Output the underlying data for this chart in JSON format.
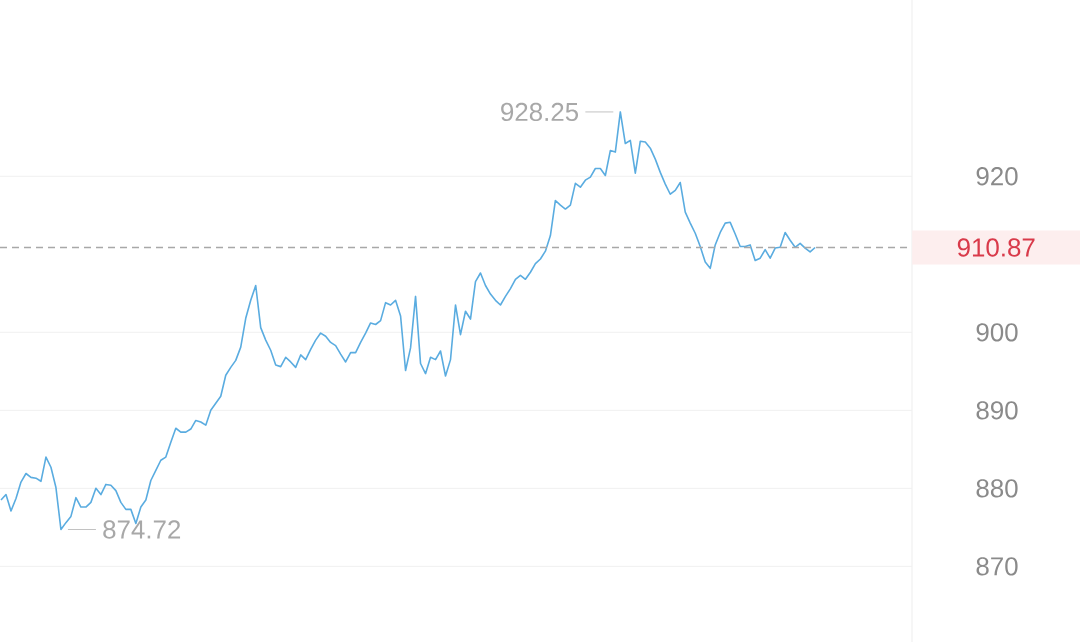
{
  "chart_data": {
    "type": "line",
    "categories": [
      null,
      null,
      null,
      null,
      null,
      null,
      null,
      null,
      null,
      null,
      null,
      null,
      null,
      null,
      null,
      null,
      null,
      null,
      null,
      null,
      null,
      null,
      null,
      null,
      null,
      null,
      null,
      null,
      null,
      null,
      null,
      null,
      null,
      null,
      null,
      null,
      null,
      null,
      null,
      null,
      null,
      null,
      null,
      null,
      null,
      null,
      null,
      null,
      null,
      null,
      null,
      null,
      null,
      null,
      null,
      null,
      null,
      null,
      null,
      null,
      null,
      null,
      null,
      null,
      null,
      null,
      null,
      null,
      null,
      null,
      null,
      null,
      null,
      null,
      null,
      null,
      null,
      null,
      null,
      null,
      null,
      null,
      null,
      null,
      null,
      null,
      null,
      null,
      null,
      null,
      null,
      null,
      null,
      null,
      null,
      null,
      null,
      null,
      null,
      null,
      null,
      null,
      null,
      null,
      null,
      null,
      null,
      null,
      null,
      null,
      null,
      null,
      null,
      null,
      null,
      null,
      null,
      null,
      null,
      null,
      null,
      null,
      null,
      null,
      null,
      null,
      null,
      null,
      null,
      null,
      null,
      null,
      null,
      null,
      null,
      null,
      null,
      null,
      null,
      null,
      null,
      null,
      null,
      null,
      null,
      null,
      null,
      null,
      null,
      null,
      null,
      null,
      null,
      null,
      null,
      null,
      null,
      null,
      null,
      null,
      null,
      null,
      null,
      null,
      null,
      null,
      null,
      null,
      null,
      null,
      null,
      null,
      null,
      null,
      null,
      null,
      null,
      null,
      null,
      null,
      null,
      null,
      null
    ],
    "series": [
      {
        "color": "#5aace0",
        "values": [
          878.5,
          879.2,
          877.1,
          878.7,
          880.8,
          881.9,
          881.4,
          881.3,
          880.9,
          884.0,
          882.7,
          880.1,
          874.72,
          875.6,
          876.4,
          878.8,
          877.6,
          877.6,
          878.2,
          880.0,
          879.2,
          880.5,
          880.4,
          879.7,
          878.2,
          877.3,
          877.3,
          875.5,
          877.6,
          878.5,
          881.0,
          882.3,
          883.6,
          884.0,
          885.9,
          887.7,
          887.2,
          887.2,
          887.6,
          888.7,
          888.5,
          888.1,
          890.0,
          890.9,
          891.8,
          894.5,
          895.5,
          896.4,
          898.1,
          901.8,
          904.1,
          906.0,
          900.6,
          899.0,
          897.7,
          895.8,
          895.6,
          896.8,
          896.2,
          895.5,
          897.1,
          896.5,
          897.8,
          899.0,
          899.9,
          899.5,
          898.7,
          898.3,
          897.2,
          896.2,
          897.4,
          897.4,
          898.7,
          899.9,
          901.2,
          901.0,
          901.5,
          903.8,
          903.5,
          904.1,
          902.1,
          895.1,
          898.0,
          904.6,
          896.0,
          894.7,
          896.8,
          896.5,
          897.6,
          894.4,
          896.5,
          903.5,
          899.7,
          902.7,
          901.7,
          906.5,
          907.6,
          906.0,
          904.9,
          904.1,
          903.5,
          904.6,
          905.6,
          906.8,
          907.3,
          906.8,
          907.7,
          908.8,
          909.4,
          910.4,
          912.4,
          916.9,
          916.3,
          915.8,
          916.3,
          919.1,
          918.6,
          919.5,
          919.9,
          921.0,
          921.0,
          920.1,
          923.3,
          923.1,
          928.25,
          924.2,
          924.6,
          920.4,
          924.5,
          924.4,
          923.6,
          922.2,
          920.5,
          919.0,
          917.7,
          918.2,
          919.2,
          915.4,
          914.0,
          912.7,
          911.0,
          909.0,
          908.2,
          911.2,
          912.8,
          914.0,
          914.1,
          912.6,
          911.0,
          911.0,
          911.2,
          909.2,
          909.5,
          910.6,
          909.5,
          910.8,
          910.9,
          912.8,
          911.8,
          910.9,
          911.4,
          910.8,
          910.3,
          910.87,
          null,
          null,
          null,
          null,
          null,
          null,
          null,
          null,
          null,
          null,
          null,
          null,
          null,
          null,
          null,
          null,
          null,
          null,
          null
        ]
      }
    ],
    "ylim": [
      860.3,
      942.6
    ],
    "yticks": [
      870,
      880,
      890,
      900,
      920
    ],
    "grid": "y",
    "tick_labels": "y",
    "ref_lines": [
      {
        "axis": "y",
        "value": 910.87,
        "label": "910.87",
        "color": "#a8a8a8",
        "line_style": "dashed"
      }
    ],
    "annotations": [
      "928.25",
      "874.72"
    ]
  }
}
